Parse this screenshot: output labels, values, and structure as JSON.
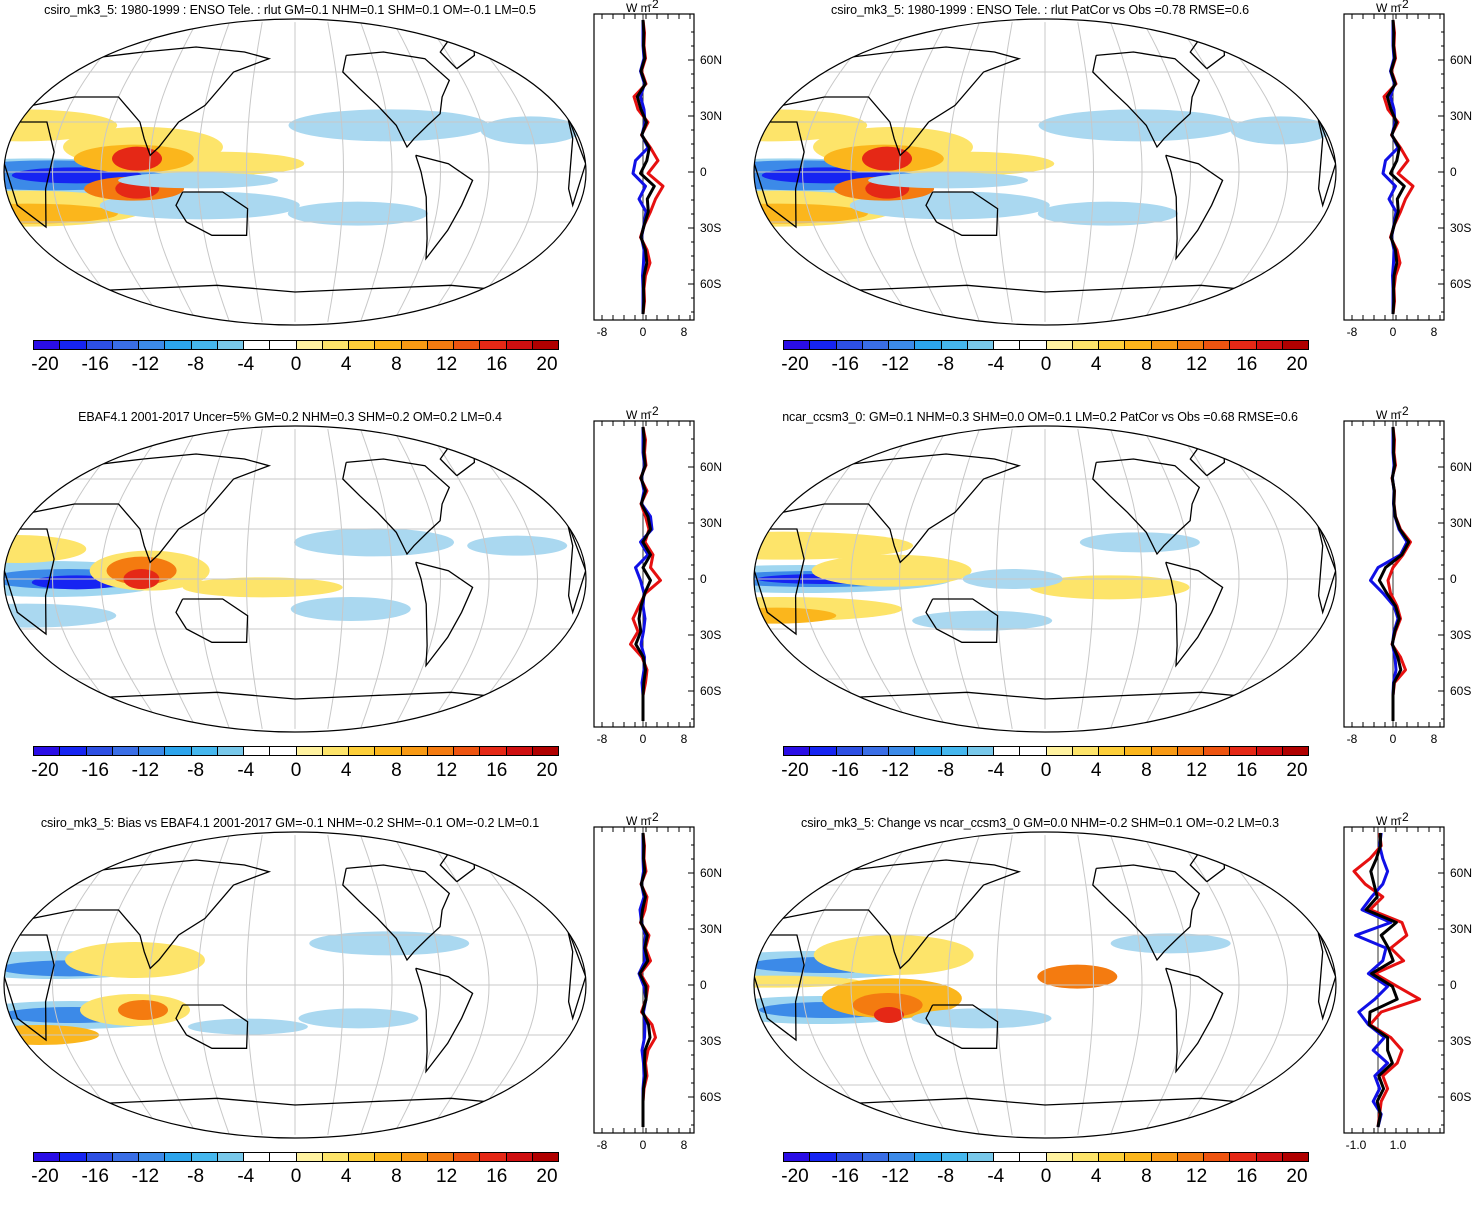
{
  "colorbar": {
    "colors": [
      "#2a0de6",
      "#1624f2",
      "#2d4fe3",
      "#3a6ee6",
      "#3c8ae8",
      "#2ca4ec",
      "#45b7ee",
      "#78c8ea",
      "#ffffff",
      "#ffffff",
      "#fff2a0",
      "#fde46a",
      "#fdcf3a",
      "#fbb61c",
      "#f89a14",
      "#f47b10",
      "#ee5410",
      "#e52816",
      "#cf0f10",
      "#b00000"
    ],
    "labels": [
      "-20",
      "-16",
      "-12",
      "-8",
      "-4",
      "0",
      "4",
      "8",
      "12",
      "16",
      "20"
    ]
  },
  "profile_axis": {
    "lat_labels": [
      "60N",
      "30N",
      "0",
      "30S",
      "60S"
    ],
    "unit_label": "W m",
    "unit_exponent": "-2",
    "x_labels_default": [
      "-8",
      "0",
      "8"
    ],
    "x_labels_change": [
      "-1.0",
      "1.0"
    ]
  },
  "panels": [
    {
      "id": "p1",
      "title": "csiro_mk3_5: 1980-1999 : ENSO Tele. : rlut GM=0.1 NHM=0.1 SHM=0.1 OM=-0.1 LM=0.5"
    },
    {
      "id": "p2",
      "title": "csiro_mk3_5: 1980-1999 : ENSO Tele. : rlut PatCor vs Obs =0.78 RMSE=0.6"
    },
    {
      "id": "p3",
      "title": "EBAF4.1 2001-2017 Uncer=5% GM=0.2 NHM=0.3 SHM=0.2 OM=0.2 LM=0.4"
    },
    {
      "id": "p4",
      "title": "ncar_ccsm3_0: GM=0.1 NHM=0.3 SHM=0.0 OM=0.1 LM=0.2 PatCor vs Obs =0.68 RMSE=0.6"
    },
    {
      "id": "p5",
      "title": "csiro_mk3_5: Bias vs EBAF4.1 2001-2017 GM=-0.1 NHM=-0.2 SHM=-0.1 OM=-0.2 LM=0.1"
    },
    {
      "id": "p6",
      "title": "csiro_mk3_5: Change vs ncar_ccsm3_0 GM=0.0 NHM=-0.2 SHM=0.1 OM=-0.2 LM=0.3"
    }
  ],
  "line_colors": {
    "red": "#e61010",
    "blue": "#1010e6",
    "black": "#000000"
  }
}
